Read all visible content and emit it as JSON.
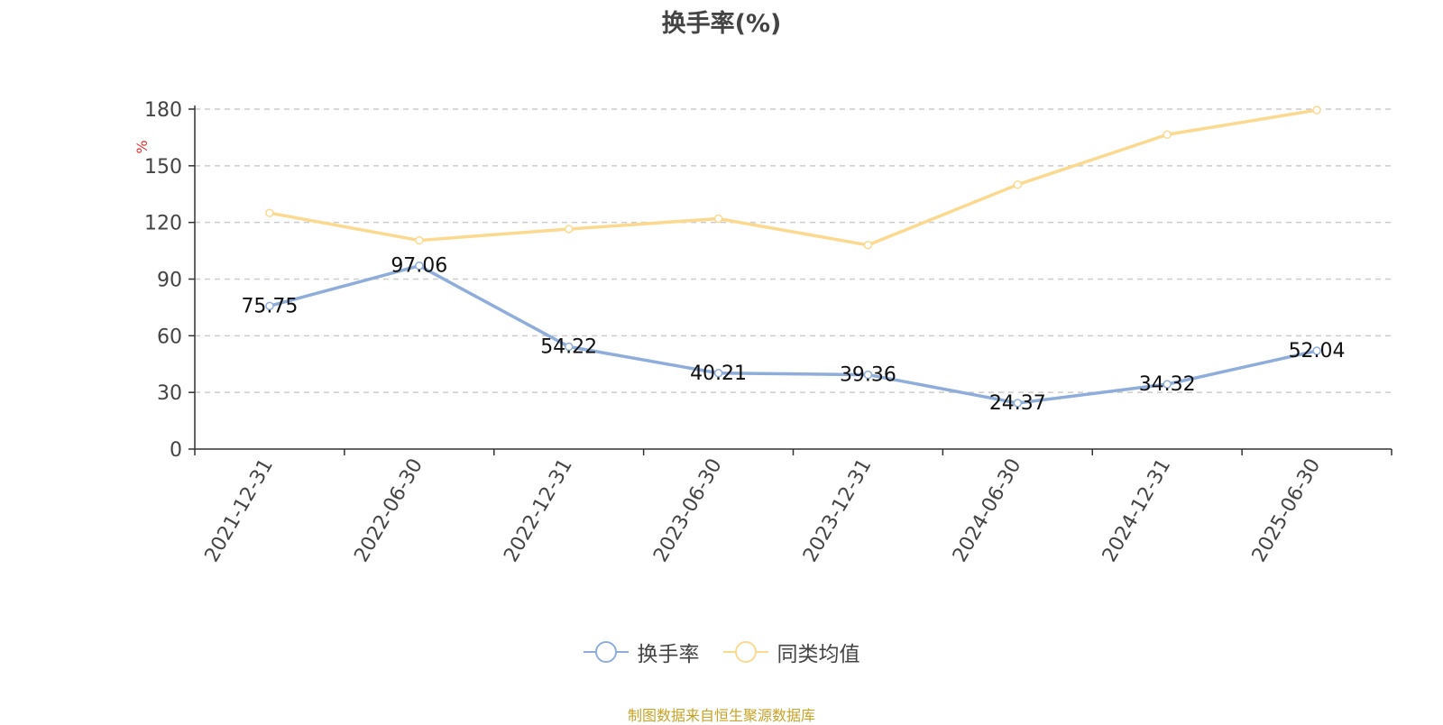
{
  "colors": {
    "series1": "#8eaddb",
    "series2": "#fbd98f",
    "source": "#c9a227",
    "unit": "#e03030",
    "grid": "#cccccc",
    "axis": "#333333",
    "text": "#444444"
  },
  "chart_data": {
    "type": "line",
    "title": "换手率(%)",
    "ylabel": "%",
    "ylim": [
      0,
      180
    ],
    "yticks": [
      0,
      30,
      60,
      90,
      120,
      150,
      180
    ],
    "grid": true,
    "legend_position": "bottom-center",
    "categories": [
      "2021-12-31",
      "2022-06-30",
      "2022-12-31",
      "2023-06-30",
      "2023-12-31",
      "2024-06-30",
      "2024-12-31",
      "2025-06-30"
    ],
    "series": [
      {
        "name": "换手率",
        "values": [
          75.75,
          97.06,
          54.22,
          40.21,
          39.36,
          24.37,
          34.32,
          52.04
        ],
        "labels": [
          "75.75",
          "97.06",
          "54.22",
          "40.21",
          "39.36",
          "24.37",
          "34.32",
          "52.04"
        ],
        "show_labels": true,
        "color_key": "series1"
      },
      {
        "name": "同类均值",
        "values": [
          125,
          110.5,
          116.5,
          122,
          108,
          140,
          166.5,
          179.5
        ],
        "show_labels": false,
        "color_key": "series2"
      }
    ],
    "source": "制图数据来自恒生聚源数据库"
  }
}
